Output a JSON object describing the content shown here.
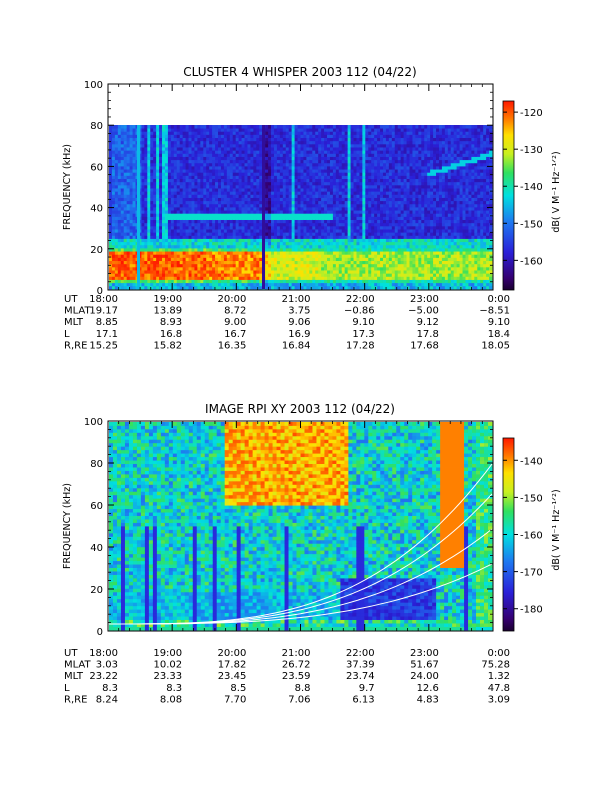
{
  "chart_data": [
    {
      "type": "heatmap",
      "title": "CLUSTER 4 WHISPER 2003 112 (04/22)",
      "ylabel": "FREQUENCY (kHz)",
      "ylim": [
        0,
        100
      ],
      "yticks": [
        "0",
        "20",
        "40",
        "60",
        "80",
        "100"
      ],
      "colorbar": {
        "label": "dB( V M⁻¹ Hz⁻¹ᐟ²)",
        "range": [
          -168,
          -117
        ],
        "ticks": [
          "-120",
          "-130",
          "-140",
          "-150",
          "-160"
        ]
      },
      "ephemeris_labels": [
        "UT",
        "MLAT",
        "MLT",
        "L",
        "R,RE"
      ],
      "ephemeris": [
        [
          "18:00",
          "19:00",
          "20:00",
          "21:00",
          "22:00",
          "23:00",
          "0:00"
        ],
        [
          "19.17",
          "13.89",
          "8.72",
          "3.75",
          "−0.86",
          "−5.00",
          "−8.51"
        ],
        [
          "8.85",
          "8.93",
          "9.00",
          "9.06",
          "9.10",
          "9.12",
          "9.10"
        ],
        [
          "17.1",
          "16.8",
          "16.7",
          "16.9",
          "17.3",
          "17.8",
          "18.4"
        ],
        [
          "15.25",
          "15.82",
          "16.35",
          "16.84",
          "17.28",
          "17.68",
          "18.05"
        ]
      ]
    },
    {
      "type": "heatmap",
      "title": "IMAGE RPI XY 2003 112 (04/22)",
      "ylabel": "FREQUENCY (kHz)",
      "ylim": [
        0,
        100
      ],
      "yticks": [
        "0",
        "20",
        "40",
        "60",
        "80",
        "100"
      ],
      "colorbar": {
        "label": "dB( V M⁻¹ Hz⁻¹ᐟ²)",
        "range": [
          -186,
          -134
        ],
        "ticks": [
          "-140",
          "-150",
          "-160",
          "-170",
          "-180"
        ]
      },
      "ephemeris_labels": [
        "UT",
        "MLAT",
        "MLT",
        "L",
        "R,RE"
      ],
      "ephemeris": [
        [
          "18:00",
          "19:00",
          "20:00",
          "21:00",
          "22:00",
          "23:00",
          "0:00"
        ],
        [
          "3.03",
          "10.02",
          "17.82",
          "26.72",
          "37.39",
          "51.67",
          "75.28"
        ],
        [
          "23.22",
          "23.33",
          "23.45",
          "23.59",
          "23.74",
          "24.00",
          "1.32"
        ],
        [
          "8.3",
          "8.3",
          "8.5",
          "8.8",
          "9.7",
          "12.6",
          "47.8"
        ],
        [
          "8.24",
          "8.08",
          "7.70",
          "7.06",
          "6.13",
          "4.83",
          "3.09"
        ]
      ]
    }
  ]
}
